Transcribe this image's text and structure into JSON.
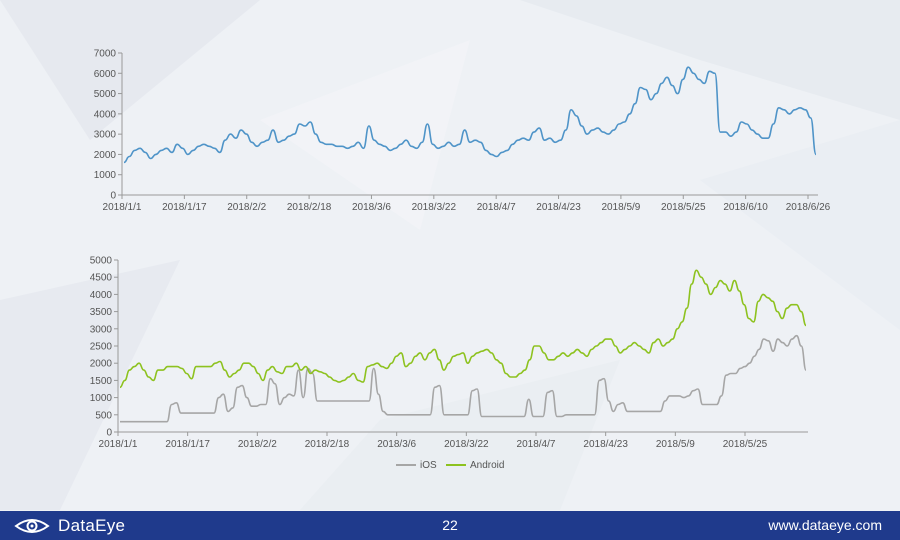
{
  "chart_data": [
    {
      "type": "line",
      "title": "",
      "xlabel": "",
      "ylabel": "",
      "ylim": [
        0,
        7000
      ],
      "yticks": [
        0,
        1000,
        2000,
        3000,
        4000,
        5000,
        6000,
        7000
      ],
      "x_ticks": [
        "2018/1/1",
        "2018/1/17",
        "2018/2/2",
        "2018/2/18",
        "2018/3/6",
        "2018/3/22",
        "2018/4/7",
        "2018/4/23",
        "2018/5/9",
        "2018/5/25",
        "2018/6/10",
        "2018/6/26"
      ],
      "grid": false,
      "color": "#4f94c8",
      "series": [
        {
          "values": [
            1600,
            1900,
            2200,
            2300,
            2100,
            1800,
            2000,
            2200,
            2300,
            2100,
            2500,
            2300,
            2000,
            2200,
            2400,
            2500,
            2400,
            2300,
            2100,
            2700,
            3000,
            2800,
            3200,
            3000,
            2600,
            2400,
            2600,
            2700,
            3200,
            2600,
            2700,
            2900,
            3000,
            3500,
            3400,
            3600,
            3000,
            2600,
            2500,
            2500,
            2400,
            2400,
            2300,
            2400,
            2600,
            2300,
            3400,
            2700,
            2500,
            2400,
            2200,
            2300,
            2500,
            2700,
            2400,
            2300,
            2600,
            3500,
            2500,
            2300,
            2400,
            2600,
            2400,
            2500,
            3200,
            2600,
            2700,
            2600,
            2200,
            2000,
            1900,
            2100,
            2200,
            2500,
            2700,
            2800,
            2700,
            3100,
            3300,
            2700,
            2800,
            2600,
            2700,
            3200,
            4200,
            3900,
            3400,
            3000,
            3200,
            3300,
            3100,
            3000,
            3200,
            3500,
            3600,
            4000,
            4500,
            5300,
            5200,
            4700,
            5000,
            5500,
            5800,
            5400,
            5000,
            5700,
            6300,
            6000,
            5700,
            5500,
            6100,
            6000,
            3100,
            3100,
            2900,
            3100,
            3600,
            3500,
            3200,
            3000,
            2800,
            2800,
            3500,
            4300,
            4200,
            4000,
            4200,
            4300,
            4200,
            3800,
            2000
          ]
        }
      ]
    },
    {
      "type": "line",
      "title": "",
      "xlabel": "",
      "ylabel": "",
      "ylim": [
        0,
        5000
      ],
      "yticks": [
        0,
        500,
        1000,
        1500,
        2000,
        2500,
        3000,
        3500,
        4000,
        4500,
        5000
      ],
      "x_ticks": [
        "2018/1/1",
        "2018/1/17",
        "2018/2/2",
        "2018/2/18",
        "2018/3/6",
        "2018/3/22",
        "2018/4/7",
        "2018/4/23",
        "2018/5/9",
        "2018/5/25"
      ],
      "grid": false,
      "legend_position": "bottom",
      "series": [
        {
          "name": "iOS",
          "color": "#a6a6a6",
          "values": [
            300,
            300,
            300,
            300,
            300,
            300,
            300,
            300,
            300,
            300,
            300,
            800,
            850,
            550,
            550,
            550,
            550,
            550,
            550,
            550,
            550,
            1000,
            1100,
            600,
            700,
            1300,
            1350,
            1000,
            750,
            750,
            800,
            800,
            1550,
            1400,
            800,
            1000,
            1100,
            1050,
            1800,
            1000,
            1850,
            1700,
            900,
            900,
            900,
            900,
            900,
            900,
            900,
            900,
            900,
            900,
            900,
            900,
            1850,
            1100,
            600,
            500,
            500,
            500,
            500,
            500,
            500,
            500,
            500,
            500,
            500,
            1300,
            1350,
            500,
            500,
            500,
            500,
            500,
            500,
            1200,
            1250,
            450,
            450,
            450,
            450,
            450,
            450,
            450,
            450,
            450,
            450,
            950,
            450,
            450,
            450,
            1150,
            1200,
            450,
            450,
            500,
            500,
            500,
            500,
            500,
            500,
            500,
            1500,
            1550,
            900,
            600,
            800,
            850,
            600,
            600,
            600,
            600,
            600,
            600,
            600,
            600,
            900,
            1050,
            1050,
            1050,
            1000,
            1050,
            1200,
            1250,
            800,
            800,
            800,
            800,
            1050,
            1650,
            1700,
            1700,
            1850,
            1900,
            2000,
            2200,
            2400,
            2700,
            2650,
            2350,
            2700,
            2600,
            2500,
            2700,
            2800,
            2500,
            1800
          ]
        },
        {
          "name": "Android",
          "color": "#8dc21f",
          "values": [
            1300,
            1500,
            1800,
            1900,
            2000,
            1800,
            1600,
            1500,
            1800,
            1800,
            1900,
            1900,
            1900,
            1850,
            1700,
            1550,
            1900,
            1900,
            1900,
            1900,
            2000,
            2050,
            1800,
            1600,
            1700,
            1800,
            2000,
            2000,
            1900,
            1700,
            1500,
            1800,
            1900,
            1750,
            1700,
            1900,
            1900,
            2000,
            1800,
            1900,
            1700,
            1800,
            1750,
            1700,
            1600,
            1500,
            1450,
            1500,
            1600,
            1700,
            1500,
            1450,
            1900,
            1950,
            2000,
            1900,
            1850,
            2000,
            2200,
            2300,
            1900,
            2000,
            2200,
            2300,
            2100,
            2300,
            2400,
            2100,
            1800,
            2000,
            2200,
            2250,
            2300,
            2000,
            2200,
            2300,
            2350,
            2400,
            2300,
            2100,
            2000,
            1700,
            1600,
            1600,
            1700,
            1800,
            2100,
            2500,
            2500,
            2300,
            2100,
            2100,
            2200,
            2300,
            2200,
            2300,
            2400,
            2300,
            2200,
            2400,
            2500,
            2600,
            2700,
            2700,
            2500,
            2300,
            2400,
            2500,
            2600,
            2500,
            2400,
            2300,
            2600,
            2700,
            2500,
            2600,
            2700,
            3000,
            3200,
            3600,
            4300,
            4700,
            4500,
            4300,
            4000,
            4200,
            4400,
            4300,
            4100,
            4400,
            4100,
            3700,
            3300,
            3200,
            3800,
            4000,
            3900,
            3800,
            3500,
            3300,
            3600,
            3700,
            3700,
            3500,
            3100
          ]
        }
      ]
    }
  ],
  "footer": {
    "logo_text": "DataEye",
    "page_number": "22",
    "website": "www.dataeye.com"
  }
}
